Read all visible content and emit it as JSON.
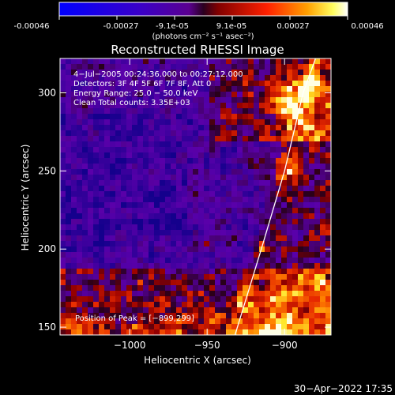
{
  "colorbar": {
    "ticks": [
      "-0.00046",
      "-0.00027",
      "-9.1e-05",
      "9.1e-05",
      "0.00027",
      "0.00046"
    ],
    "unit_label": "(photons cm⁻² s⁻¹ asec⁻²)",
    "range": [
      -0.00046,
      0.00046
    ]
  },
  "chart_data": {
    "type": "heatmap",
    "title": "Reconstructed RHESSI Image",
    "xlabel": "Heliocentric X (arcsec)",
    "ylabel": "Heliocentric Y (arcsec)",
    "xlim": [
      -1045,
      -870
    ],
    "ylim": [
      145,
      322
    ],
    "xticks": [
      -1000,
      -950,
      -900
    ],
    "xtick_labels": [
      "−1000",
      "−950",
      "−900"
    ],
    "yticks": [
      150,
      200,
      250,
      300
    ],
    "ytick_labels": [
      "150",
      "200",
      "250",
      "300"
    ],
    "colormap": "rhessi-blue-purple-red-yellow-white",
    "info_lines": [
      "4−Jul−2005 00:24:36.000 to 00:27:12.000",
      "Detectors: 3F 4F 5F 6F 7F 8F, Att 0",
      "Energy Range: 25.0 − 50.0 keV",
      "Clean     Total counts: 3.35E+03"
    ],
    "peak_label": "Position of Peak = [−899,299]",
    "peak_position": [
      -899,
      299
    ],
    "limb_curve_points": [
      [
        -932,
        145
      ],
      [
        -915,
        200
      ],
      [
        -900,
        250
      ],
      [
        -888,
        300
      ],
      [
        -880,
        322
      ]
    ]
  },
  "footer": {
    "timestamp": "30−Apr−2022 17:35"
  }
}
